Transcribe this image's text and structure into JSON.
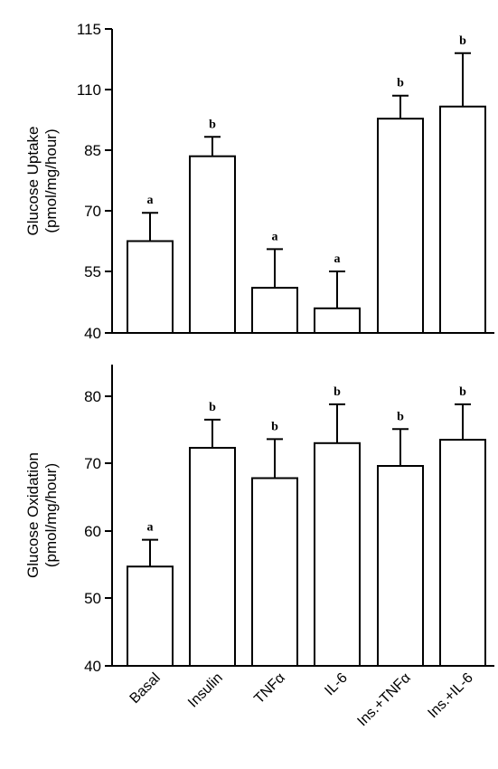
{
  "chart_data": [
    {
      "type": "bar",
      "categories": [
        "Basal",
        "Insulin",
        "TNFα",
        "IL-6",
        "Ins.+TNFα",
        "Ins.+IL-6"
      ],
      "ylabel": [
        "Glucose Uptake",
        "(pmol/mg/hour)"
      ],
      "ylim": [
        40,
        115
      ],
      "yticks": [
        40,
        55,
        70,
        85,
        110,
        115
      ],
      "values": [
        62.5,
        83.5,
        51.0,
        46.0,
        98.0,
        103.0
      ],
      "errors": [
        7.0,
        7.0,
        9.5,
        9.0,
        9.5,
        10.0
      ],
      "significance": [
        "a",
        "b",
        "a",
        "a",
        "b",
        "b"
      ]
    },
    {
      "type": "bar",
      "categories": [
        "Basal",
        "Insulin",
        "TNFα",
        "IL-6",
        "Ins.+TNFα",
        "Ins.+IL-6"
      ],
      "ylabel": [
        "Glucose Oxidation",
        "(pmol/mg/hour)"
      ],
      "ylim": [
        40,
        85
      ],
      "yticks": [
        40,
        50,
        60,
        70,
        80
      ],
      "values": [
        54.7,
        72.3,
        67.8,
        73.0,
        69.6,
        73.5
      ],
      "errors": [
        4.0,
        4.2,
        5.8,
        5.8,
        5.5,
        5.3
      ],
      "significance": [
        "a",
        "b",
        "b",
        "b",
        "b",
        "b"
      ]
    }
  ]
}
